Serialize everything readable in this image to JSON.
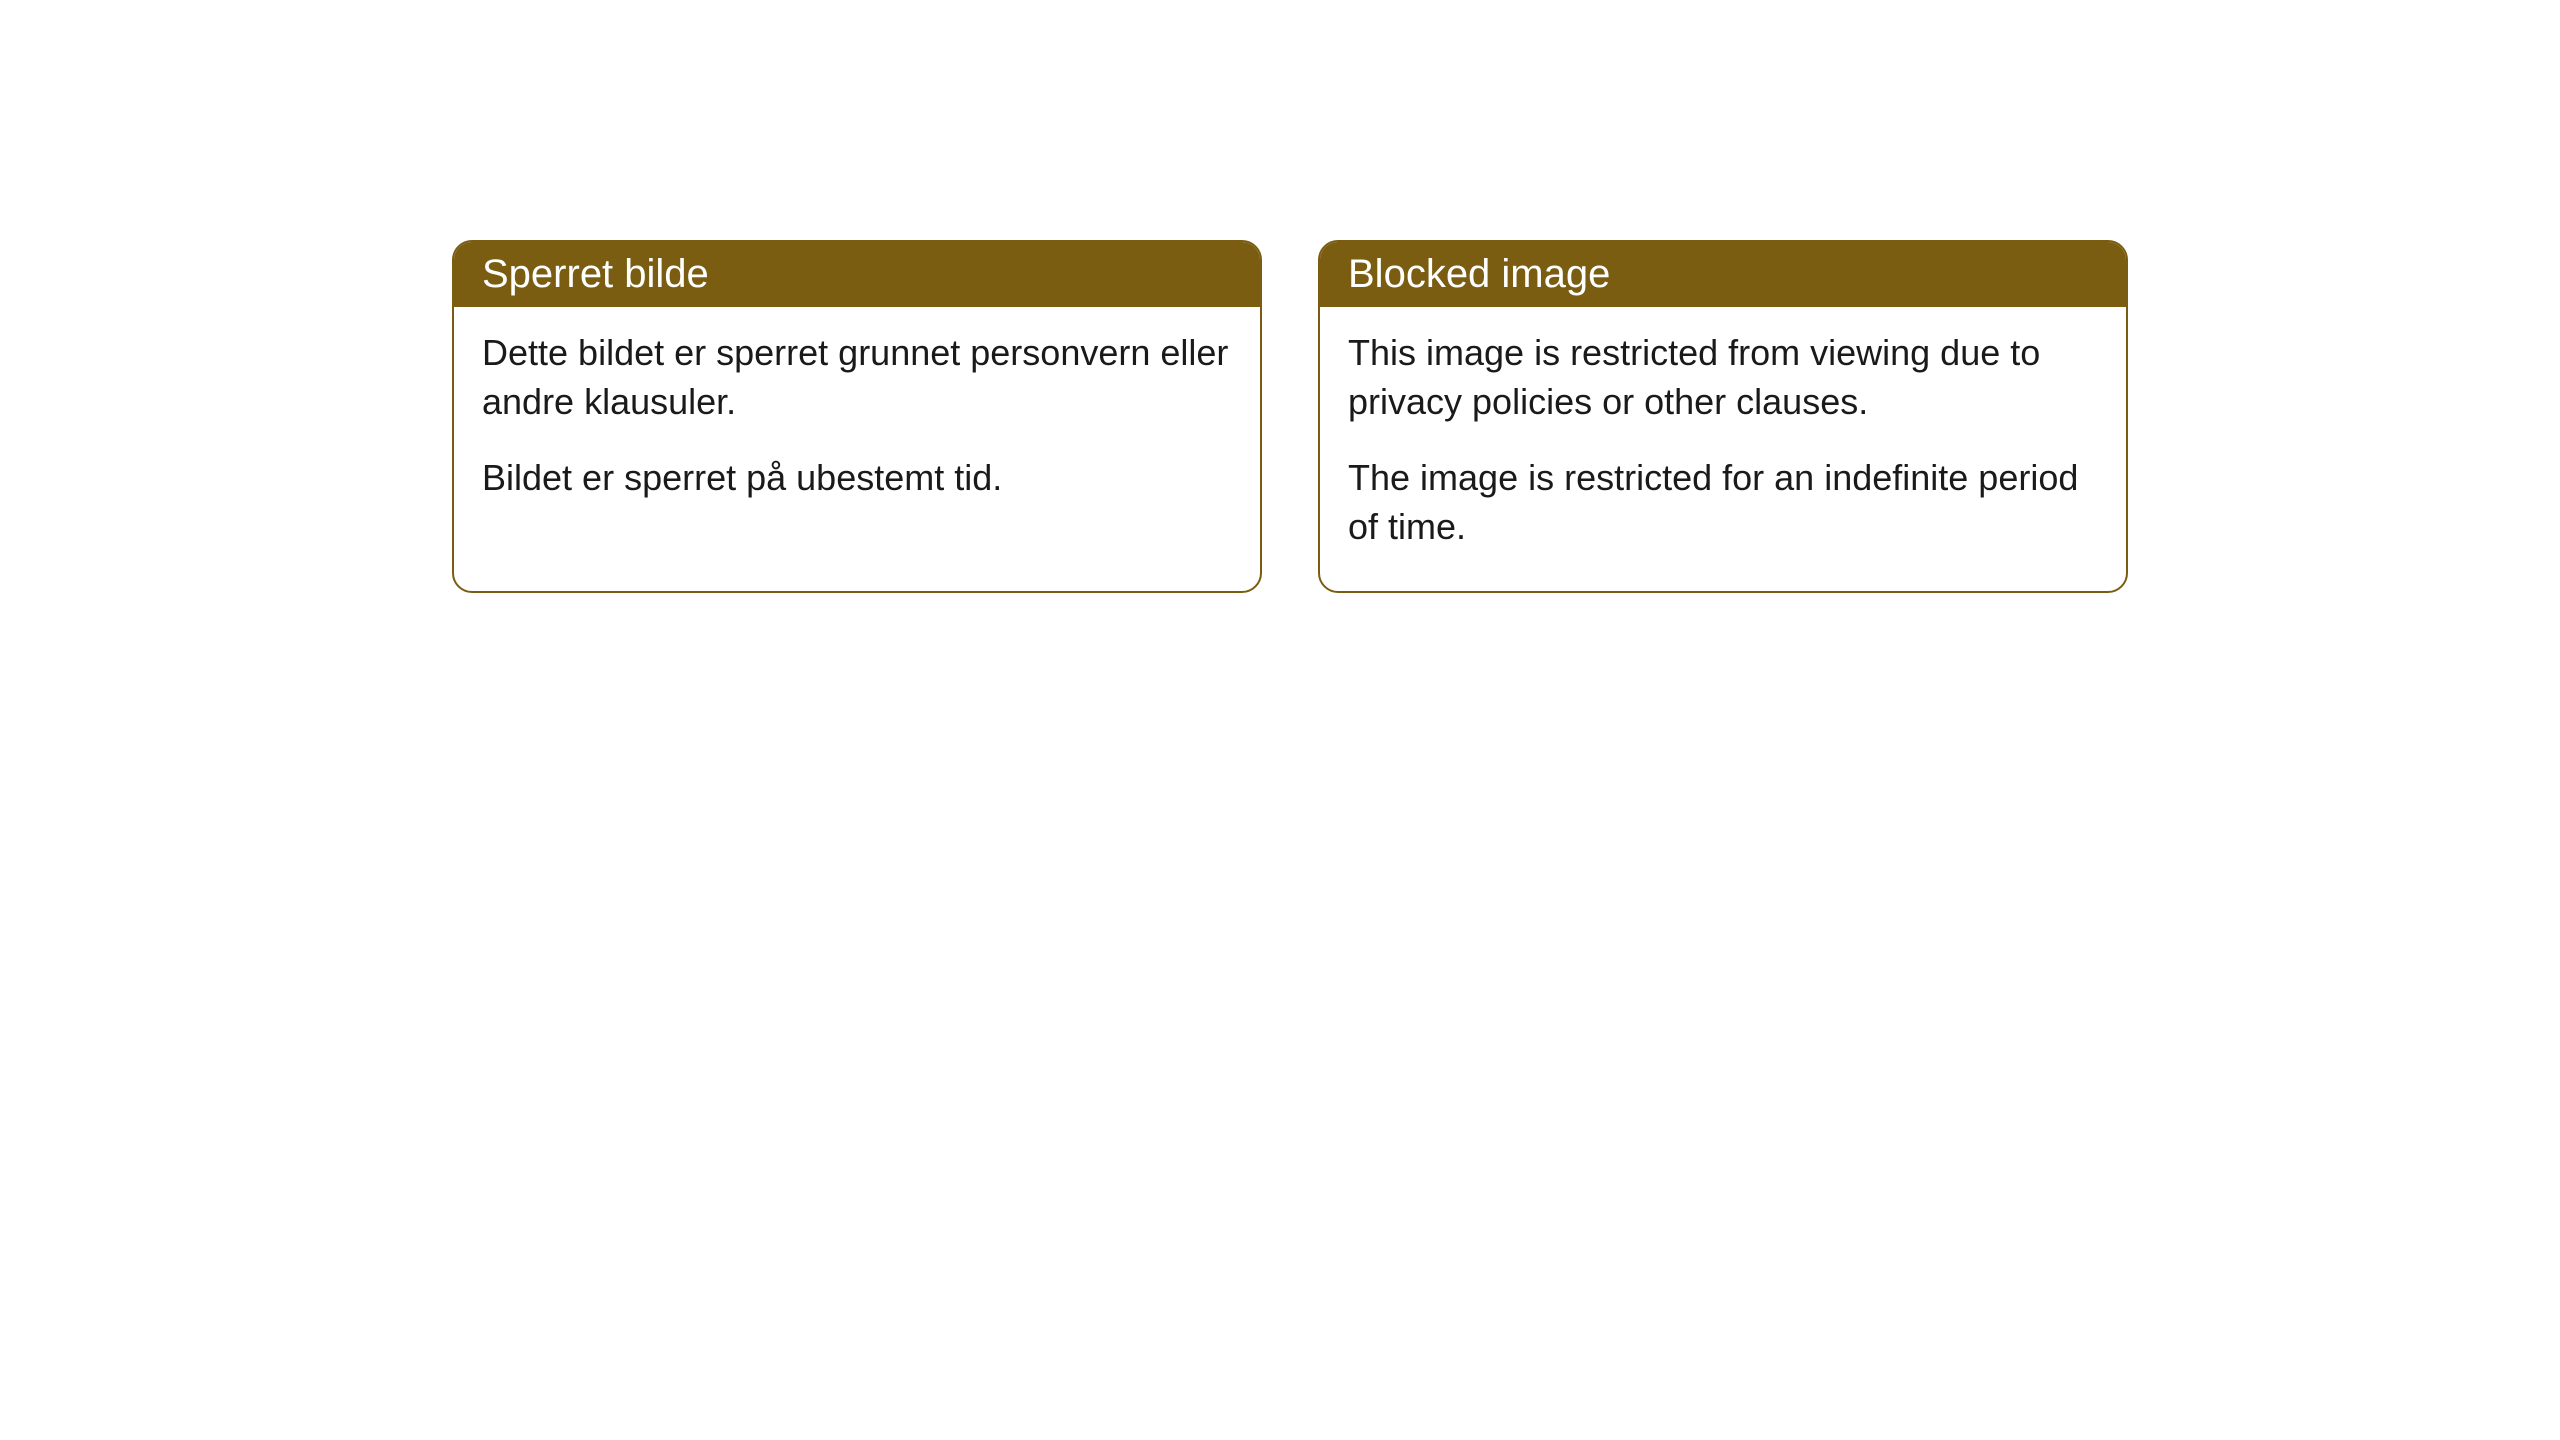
{
  "cards": [
    {
      "title": "Sperret bilde",
      "paragraph1": "Dette bildet er sperret grunnet personvern eller andre klausuler.",
      "paragraph2": "Bildet er sperret på ubestemt tid."
    },
    {
      "title": "Blocked image",
      "paragraph1": "This image is restricted from viewing due to privacy policies or other clauses.",
      "paragraph2": "The image is restricted for an indefinite period of time."
    }
  ],
  "styling": {
    "header_background": "#7a5d10",
    "header_text_color": "#ffffff",
    "card_border_color": "#7a5d10",
    "card_background": "#ffffff",
    "body_text_color": "#1a1a1a",
    "border_radius": 20,
    "title_fontsize": 40,
    "body_fontsize": 36
  }
}
